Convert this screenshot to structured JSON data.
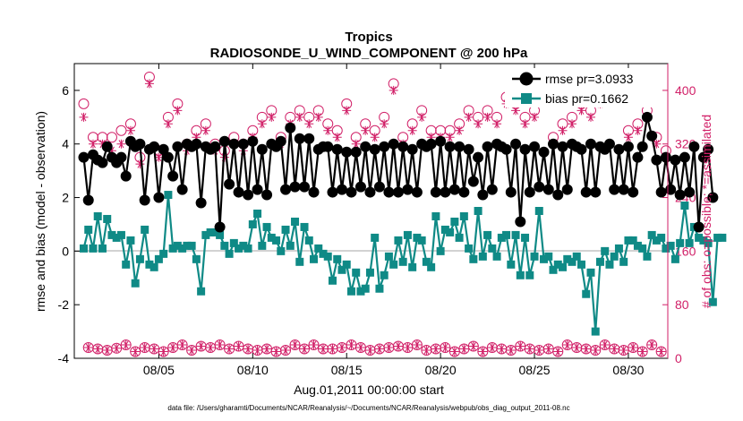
{
  "chart_data": {
    "type": "line",
    "title": "Tropics",
    "subtitle": "RADIOSONDE_U_WIND_COMPONENT @ 200 hPa",
    "xlabel": "Aug.01,2011 00:00:00 start",
    "ylabel": "rmse and bias (model - observation)",
    "y2label": "# of obs: o=possible; *=assimilated",
    "footer": "data file: /Users/gharamti/Documents/NCAR/Reanalysis/~/Documents/NCAR/Reanalysis/webpub/obs_diag_output_2011-08.nc",
    "xlim": [
      0.5,
      32.1
    ],
    "ylim": [
      -4,
      7
    ],
    "y2lim": [
      0,
      440
    ],
    "x_ticks": [
      5,
      10,
      15,
      20,
      25,
      30
    ],
    "x_tick_labels": [
      "08/05",
      "08/10",
      "08/15",
      "08/20",
      "08/25",
      "08/30"
    ],
    "y_ticks": [
      -4,
      -2,
      0,
      2,
      4,
      6
    ],
    "y_tick_labels": [
      "-4",
      "-2",
      "0",
      "2",
      "4",
      "6"
    ],
    "y2_ticks": [
      0,
      80,
      160,
      240,
      320,
      400
    ],
    "y2_tick_labels": [
      "0",
      "80",
      "160",
      "240",
      "320",
      "400"
    ],
    "x_step_days": 0.25,
    "x_start": 1.0,
    "series": [
      {
        "name": "rmse",
        "legend": "rmse pr=3.0933",
        "color": "#000000",
        "axis": "left",
        "values": [
          3.5,
          1.9,
          3.6,
          3.4,
          3.3,
          3.9,
          3.5,
          3.3,
          3.5,
          2.8,
          4.1,
          3.9,
          4.0,
          1.9,
          3.8,
          3.9,
          2.0,
          3.8,
          3.5,
          2.8,
          3.9,
          2.3,
          4.0,
          3.9,
          4.0,
          1.8,
          3.9,
          3.8,
          3.9,
          0.9,
          4.1,
          2.5,
          4.0,
          2.2,
          4.0,
          2.1,
          4.1,
          2.3,
          3.8,
          2.1,
          4.0,
          3.9,
          4.1,
          2.3,
          4.6,
          2.4,
          4.2,
          2.4,
          4.2,
          2.2,
          3.8,
          3.9,
          3.9,
          2.2,
          3.8,
          2.3,
          3.7,
          2.2,
          3.7,
          2.4,
          3.9,
          2.2,
          3.8,
          2.4,
          3.9,
          2.2,
          4.0,
          2.2,
          3.9,
          2.3,
          3.8,
          2.2,
          4.0,
          3.9,
          4.0,
          2.2,
          4.1,
          2.2,
          3.9,
          2.3,
          3.9,
          2.2,
          3.8,
          2.6,
          3.5,
          2.1,
          3.9,
          2.3,
          4.0,
          3.9,
          3.8,
          2.2,
          4.0,
          1.1,
          3.8,
          2.2,
          3.9,
          2.4,
          3.7,
          2.3,
          4.0,
          2.1,
          3.9,
          2.3,
          4.0,
          3.9,
          3.8,
          2.2,
          4.0,
          2.2,
          3.9,
          3.8,
          4.0,
          2.3,
          3.8,
          2.3,
          3.9,
          2.2,
          3.5,
          3.9,
          5.0,
          4.3,
          3.4,
          2.2,
          3.5,
          2.3,
          3.4,
          2.1,
          3.5,
          2.2,
          3.9,
          0.9,
          3.5,
          3.8,
          2.0
        ]
      },
      {
        "name": "bias",
        "legend": "bias pr=0.1662",
        "color": "#0f8a86",
        "axis": "left",
        "values": [
          0.1,
          0.8,
          0.1,
          1.3,
          0.1,
          1.2,
          0.6,
          0.5,
          0.6,
          -0.5,
          0.4,
          -1.2,
          -0.3,
          0.8,
          -0.5,
          -0.6,
          -0.3,
          -0.1,
          2.1,
          0.1,
          0.2,
          0.1,
          0.2,
          0.2,
          -0.3,
          -1.5,
          0.6,
          0.7,
          0.7,
          0.6,
          0.2,
          -0.1,
          0.3,
          0.1,
          0.2,
          0.1,
          1.0,
          1.4,
          0.2,
          0.9,
          0.5,
          0.4,
          0.0,
          0.8,
          0.2,
          1.1,
          -0.4,
          0.9,
          0.4,
          -0.3,
          0.1,
          -0.1,
          -0.2,
          -1.1,
          -0.3,
          -0.7,
          -0.5,
          -1.5,
          -0.8,
          -1.5,
          -1.4,
          -0.8,
          0.5,
          -1.4,
          -0.9,
          -0.2,
          -0.5,
          0.4,
          -0.4,
          0.6,
          -0.6,
          0.5,
          0.4,
          -0.4,
          -0.6,
          1.3,
          0.0,
          0.8,
          0.7,
          1.1,
          0.5,
          1.3,
          0.1,
          -0.3,
          1.5,
          -0.2,
          0.6,
          0.1,
          -0.2,
          0.5,
          0.6,
          -0.5,
          0.6,
          -0.9,
          0.5,
          -0.9,
          -0.2,
          1.5,
          -0.3,
          -0.2,
          -0.7,
          -0.5,
          -0.6,
          -0.3,
          -0.4,
          -0.2,
          -0.5,
          -1.6,
          -0.8,
          -3.0,
          -0.4,
          0.0,
          -0.5,
          -0.2,
          0.1,
          -0.4,
          0.4,
          0.4,
          0.2,
          0.1,
          -0.2,
          0.6,
          0.4,
          0.5,
          0.1,
          0.2,
          -0.3,
          0.3,
          1.7,
          0.3,
          0.9,
          0.5,
          0.4,
          0.3,
          -1.9,
          0.5,
          0.5
        ]
      },
      {
        "name": "nposs",
        "legend": "",
        "color": "#d11f67",
        "axis": "right",
        "marker": "circle",
        "values": [
          380,
          16,
          330,
          14,
          330,
          12,
          330,
          15,
          340,
          20,
          350,
          10,
          300,
          16,
          420,
          14,
          310,
          10,
          360,
          16,
          380,
          20,
          320,
          12,
          340,
          18,
          350,
          16,
          320,
          20,
          310,
          14,
          330,
          18,
          320,
          14,
          340,
          12,
          360,
          14,
          370,
          10,
          330,
          12,
          360,
          20,
          370,
          14,
          360,
          20,
          370,
          14,
          350,
          14,
          340,
          16,
          380,
          20,
          330,
          16,
          350,
          12,
          340,
          14,
          360,
          16,
          410,
          18,
          330,
          16,
          350,
          20,
          370,
          12,
          340,
          14,
          340,
          16,
          340,
          10,
          350,
          14,
          370,
          18,
          360,
          10,
          370,
          16,
          360,
          14,
          390,
          12,
          380,
          18,
          360,
          14,
          370,
          12,
          410,
          14,
          330,
          10,
          350,
          20,
          360,
          16,
          380,
          14,
          370,
          12,
          390,
          20,
          410,
          14,
          400,
          12,
          340,
          16,
          350,
          10,
          370,
          20,
          330,
          10,
          310,
          16,
          330,
          14,
          320,
          10,
          360,
          18,
          350,
          14,
          360,
          5
        ]
      },
      {
        "name": "nused",
        "legend": "",
        "color": "#d11f67",
        "axis": "right",
        "marker": "star",
        "values": [
          360,
          16,
          320,
          14,
          320,
          12,
          310,
          15,
          320,
          20,
          340,
          10,
          290,
          16,
          410,
          14,
          300,
          10,
          350,
          16,
          370,
          20,
          310,
          12,
          330,
          18,
          340,
          16,
          310,
          20,
          300,
          14,
          320,
          18,
          310,
          14,
          330,
          12,
          350,
          14,
          360,
          10,
          320,
          12,
          350,
          20,
          360,
          14,
          350,
          20,
          360,
          14,
          340,
          14,
          330,
          16,
          370,
          20,
          320,
          16,
          340,
          12,
          330,
          14,
          350,
          16,
          400,
          18,
          320,
          16,
          340,
          20,
          360,
          12,
          330,
          14,
          330,
          16,
          330,
          10,
          340,
          14,
          360,
          18,
          350,
          10,
          360,
          16,
          350,
          14,
          380,
          12,
          370,
          18,
          350,
          14,
          360,
          12,
          400,
          14,
          320,
          10,
          340,
          20,
          350,
          16,
          370,
          14,
          360,
          12,
          380,
          20,
          400,
          14,
          390,
          12,
          330,
          16,
          340,
          10,
          360,
          20,
          320,
          10,
          300,
          16,
          320,
          14,
          310,
          10,
          350,
          18,
          340,
          14,
          350,
          5
        ]
      }
    ]
  }
}
